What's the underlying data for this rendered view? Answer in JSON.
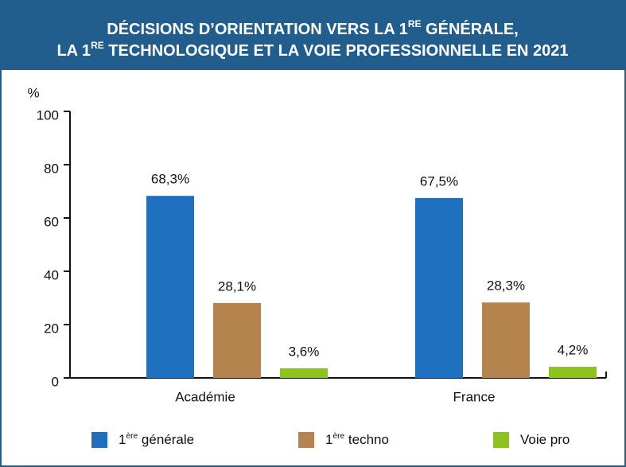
{
  "chart_data": {
    "type": "bar",
    "title": [
      [
        "DÉCISIONS D’ORIENTATION VERS LA 1",
        "RE",
        " GÉNÉRALE,"
      ],
      [
        "LA 1",
        "RE",
        " TECHNOLOGIQUE ET LA VOIE PROFESSIONNELLE EN 2021"
      ]
    ],
    "ylabel": "%",
    "categories": [
      "Académie",
      "France"
    ],
    "series": [
      {
        "name": [
          "1",
          "ère",
          " générale"
        ],
        "color": "#1f6fbf",
        "values": [
          68.3,
          67.5
        ],
        "value_labels": [
          "68,3%",
          "67,5%"
        ]
      },
      {
        "name": [
          "1",
          "ère",
          " techno"
        ],
        "color": "#b5834e",
        "values": [
          28.1,
          28.3
        ],
        "value_labels": [
          "28,1%",
          "28,3%"
        ]
      },
      {
        "name": [
          "Voie pro"
        ],
        "color": "#8dc21f",
        "values": [
          3.6,
          4.2
        ],
        "value_labels": [
          "3,6%",
          "4,2%"
        ]
      }
    ],
    "ylim": [
      0,
      100
    ],
    "yticks": [
      0,
      20,
      40,
      60,
      80,
      100
    ],
    "grid": false
  }
}
